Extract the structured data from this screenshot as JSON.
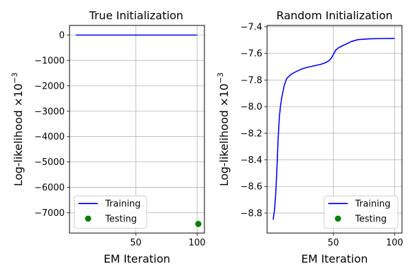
{
  "chart_data": [
    {
      "type": "line",
      "title": "True Initialization",
      "xlabel": "EM Iteration",
      "ylabel": "Log-likelihood ×10",
      "ylabel_exp": "−3",
      "xlim": [
        -4,
        106
      ],
      "ylim": [
        -7800,
        380
      ],
      "xticks": [
        50,
        100
      ],
      "yticks": [
        0,
        -1000,
        -2000,
        -3000,
        -4000,
        -5000,
        -6000,
        -7000
      ],
      "ytick_labels": [
        "0",
        "−1000",
        "−2000",
        "−3000",
        "−4000",
        "−5000",
        "−6000",
        "−7000"
      ],
      "grid": true,
      "legend": "lower-left",
      "series": [
        {
          "name": "Training",
          "kind": "line",
          "color": "#0000ff",
          "x": [
            1,
            10,
            20,
            30,
            40,
            50,
            60,
            70,
            80,
            90,
            100
          ],
          "y": [
            0,
            0,
            0,
            0,
            0,
            0,
            0,
            0,
            0,
            0,
            0
          ]
        },
        {
          "name": "Testing",
          "kind": "scatter",
          "color": "#008000",
          "x": [
            101
          ],
          "y": [
            -7440
          ]
        }
      ]
    },
    {
      "type": "line",
      "title": "Random Initialization",
      "xlabel": "EM Iteration",
      "ylabel": "Log-likelihood ×10",
      "ylabel_exp": "−3",
      "xlim": [
        -4,
        106
      ],
      "ylim": [
        -8.95,
        -7.39
      ],
      "xticks": [
        50,
        100
      ],
      "yticks": [
        -7.4,
        -7.6,
        -7.8,
        -8.0,
        -8.2,
        -8.4,
        -8.6,
        -8.8
      ],
      "ytick_labels": [
        "−7.4",
        "−7.6",
        "−7.8",
        "−8.0",
        "−8.2",
        "−8.4",
        "−8.6",
        "−8.8"
      ],
      "grid": true,
      "legend": "lower-right",
      "series": [
        {
          "name": "Training",
          "kind": "line",
          "color": "#0000ff",
          "x": [
            1,
            2,
            3,
            4,
            5,
            6,
            7,
            8,
            10,
            12,
            14,
            16,
            20,
            25,
            30,
            35,
            40,
            43,
            46,
            48,
            50,
            52,
            54,
            57,
            60,
            65,
            70,
            80,
            90,
            100
          ],
          "y": [
            -8.85,
            -8.78,
            -8.66,
            -8.47,
            -8.25,
            -8.08,
            -7.99,
            -7.93,
            -7.84,
            -7.79,
            -7.77,
            -7.755,
            -7.735,
            -7.715,
            -7.702,
            -7.692,
            -7.682,
            -7.672,
            -7.658,
            -7.64,
            -7.61,
            -7.575,
            -7.56,
            -7.545,
            -7.532,
            -7.51,
            -7.497,
            -7.49,
            -7.488,
            -7.487
          ]
        },
        {
          "name": "Testing",
          "kind": "scatter",
          "color": "#008000",
          "x": [],
          "y": []
        }
      ]
    }
  ]
}
